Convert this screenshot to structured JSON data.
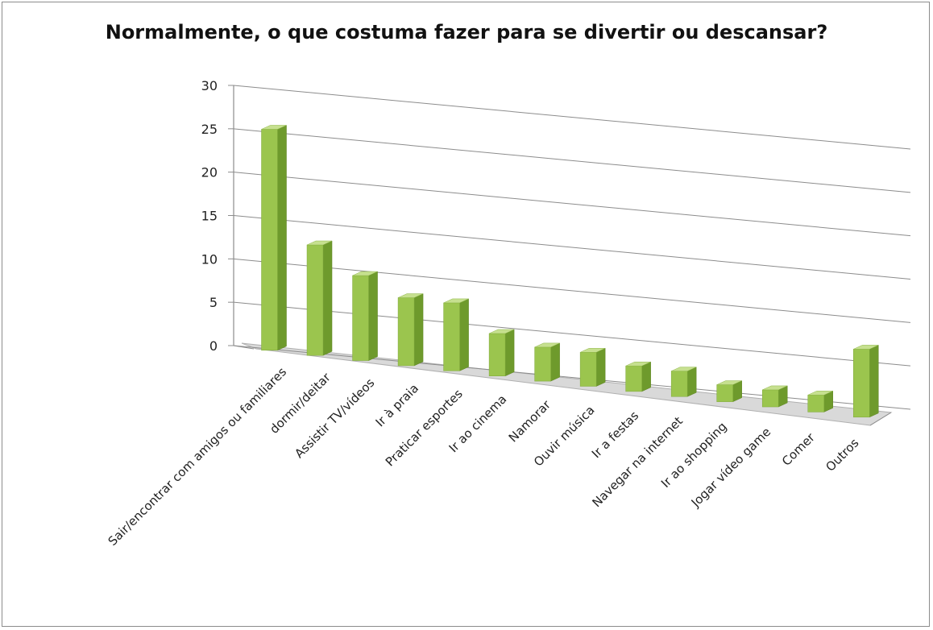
{
  "chart_data": {
    "type": "bar",
    "title": "Normalmente, o que costuma fazer para se divertir ou descansar?",
    "xlabel": "",
    "ylabel": "",
    "ylim": [
      0,
      30
    ],
    "yticks": [
      0,
      5,
      10,
      15,
      20,
      25,
      30
    ],
    "grid": true,
    "three_d": true,
    "categories": [
      "Sair/encontrar com amigos ou familiares",
      "dormir/deitar",
      "Assistir TV/vídeos",
      "Ir à praia",
      "Praticar esportes",
      "Ir ao cinema",
      "Namorar",
      "Ouvir música",
      "Ir a festas",
      "Navegar na internet",
      "Ir ao shopping",
      "Jogar vídeo game",
      "Comer",
      "Outros"
    ],
    "values": [
      26,
      13,
      10,
      8,
      8,
      5,
      4,
      4,
      3,
      3,
      2,
      2,
      2,
      8
    ],
    "colors": {
      "bar_front": "#9bc54e",
      "bar_side": "#6e9a2c",
      "bar_top": "#c6e08f",
      "floor": "#d9d9d9",
      "grid": "#8c8c8c"
    }
  }
}
